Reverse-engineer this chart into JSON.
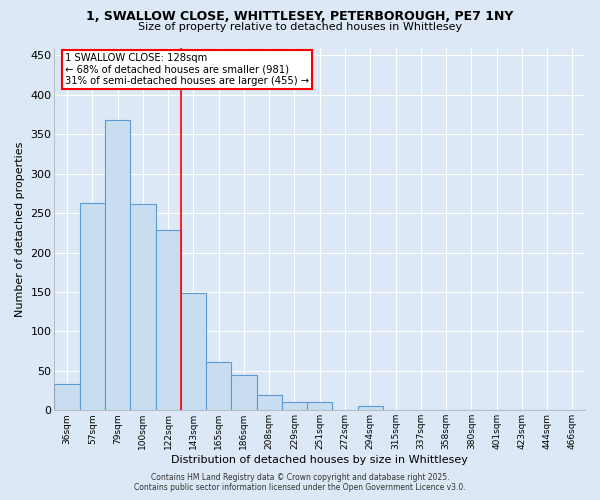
{
  "title_line1": "1, SWALLOW CLOSE, WHITTLESEY, PETERBOROUGH, PE7 1NY",
  "title_line2": "Size of property relative to detached houses in Whittlesey",
  "xlabel": "Distribution of detached houses by size in Whittlesey",
  "ylabel": "Number of detached properties",
  "bar_labels": [
    "36sqm",
    "57sqm",
    "79sqm",
    "100sqm",
    "122sqm",
    "143sqm",
    "165sqm",
    "186sqm",
    "208sqm",
    "229sqm",
    "251sqm",
    "272sqm",
    "294sqm",
    "315sqm",
    "337sqm",
    "358sqm",
    "380sqm",
    "401sqm",
    "423sqm",
    "444sqm",
    "466sqm"
  ],
  "bar_values": [
    33,
    263,
    368,
    261,
    229,
    149,
    61,
    45,
    20,
    11,
    10,
    0,
    5,
    0,
    1,
    0,
    0,
    0,
    0,
    1,
    0
  ],
  "bar_color": "#c8ddf0",
  "bar_edge_color": "#5b9bd5",
  "ylim": [
    0,
    460
  ],
  "yticks": [
    0,
    50,
    100,
    150,
    200,
    250,
    300,
    350,
    400,
    450
  ],
  "annotation_title": "1 SWALLOW CLOSE: 128sqm",
  "annotation_line2": "← 68% of detached houses are smaller (981)",
  "annotation_line3": "31% of semi-detached houses are larger (455) →",
  "footer_line1": "Contains HM Land Registry data © Crown copyright and database right 2025.",
  "footer_line2": "Contains public sector information licensed under the Open Government Licence v3.0.",
  "background_color": "#dce8f5",
  "plot_bg_color": "#dce8f5",
  "grid_color": "#ffffff",
  "red_line_x": 4.5
}
